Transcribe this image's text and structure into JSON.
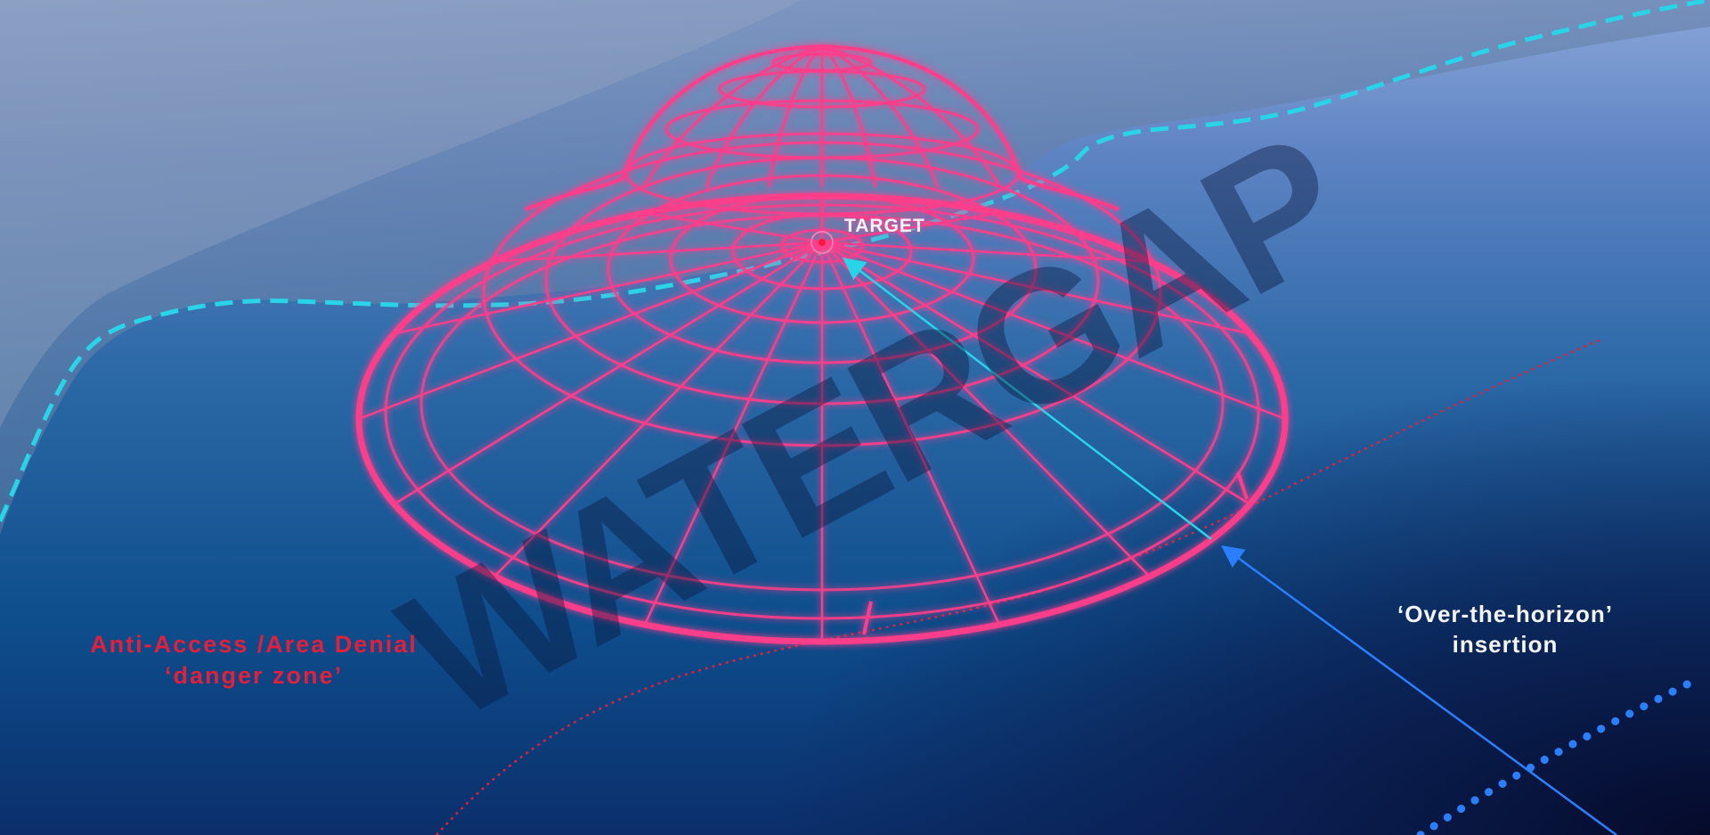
{
  "labels": {
    "target": "TARGET",
    "a2ad_line1": "Anti-Access /Area Denial",
    "a2ad_line2": "‘danger zone’",
    "oth_line1": "‘Over-the-horizon’",
    "oth_line2": "insertion",
    "watermark": "WATERGAP"
  },
  "colors": {
    "dome": "#ff3d8a",
    "coastline": "#2ad4e8",
    "danger_zone": "#e0203c",
    "insertion_path": "#2a7fff",
    "approach_line": "#2ad4e8"
  },
  "icons": {
    "target_marker": "target-dot-icon",
    "arrowheads": "arrowhead-icon"
  }
}
